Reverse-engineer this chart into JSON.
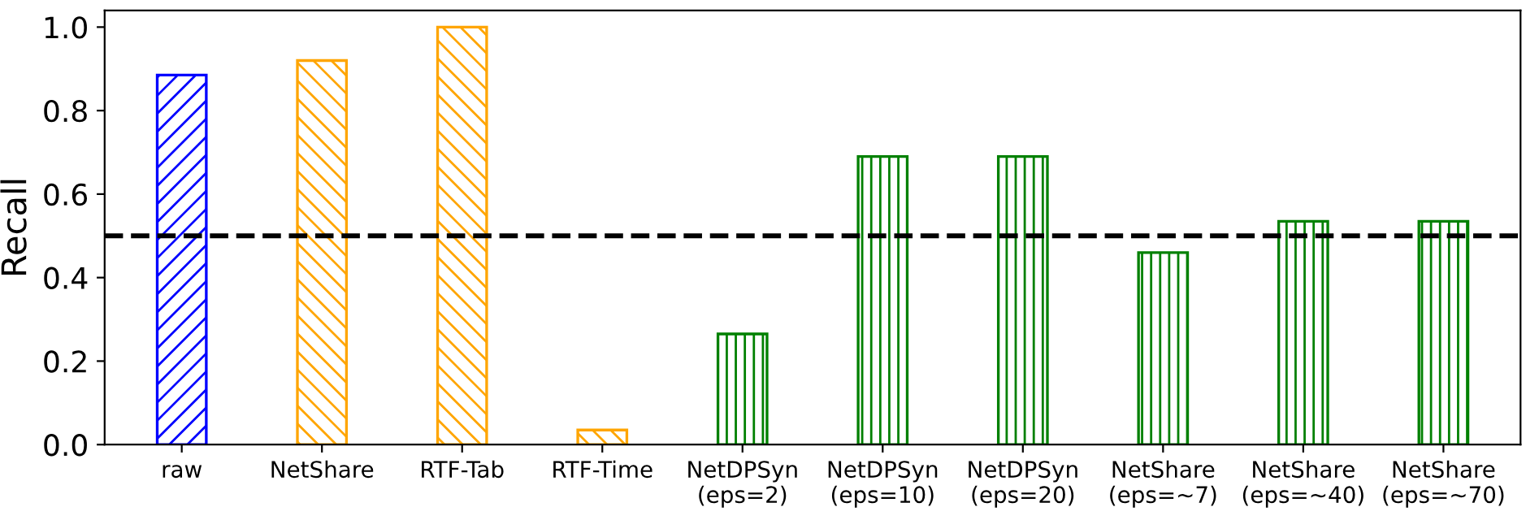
{
  "chart_data": {
    "type": "bar",
    "ylabel": "Recall",
    "categories": [
      "raw",
      "NetShare",
      "RTF-Tab",
      "RTF-Time",
      "NetDPSyn\n(eps=2)",
      "NetDPSyn\n(eps=10)",
      "NetDPSyn\n(eps=20)",
      "NetShare\n(eps=~7)",
      "NetShare\n(eps=~40)",
      "NetShare\n(eps=~70)"
    ],
    "values": [
      0.885,
      0.92,
      1.0,
      0.035,
      0.265,
      0.69,
      0.69,
      0.46,
      0.535,
      0.535
    ],
    "colors": [
      "#0000ff",
      "#ffa500",
      "#ffa500",
      "#ffa500",
      "#008000",
      "#008000",
      "#008000",
      "#008000",
      "#008000",
      "#008000"
    ],
    "ylim": [
      0,
      1.04
    ],
    "yticks": [
      {
        "value": 0,
        "label": "0.0"
      },
      {
        "value": 0.2,
        "label": "0.2"
      },
      {
        "value": 0.4,
        "label": "0.4"
      },
      {
        "value": 0.6,
        "label": "0.6"
      },
      {
        "value": 0.8,
        "label": "0.8"
      },
      {
        "value": 1.0,
        "label": "1.0"
      }
    ],
    "ref_lines": [
      {
        "axis": "y",
        "value": 0.5,
        "color": "#000000",
        "line_style": "dashed"
      }
    ],
    "grid": false,
    "legend": false
  }
}
